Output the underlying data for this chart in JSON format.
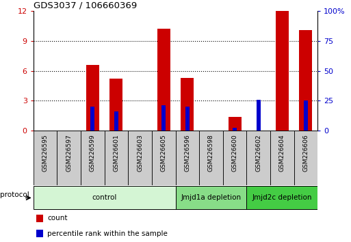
{
  "title": "GDS3037 / 106660369",
  "samples": [
    "GSM226595",
    "GSM226597",
    "GSM226599",
    "GSM226601",
    "GSM226603",
    "GSM226605",
    "GSM226596",
    "GSM226598",
    "GSM226600",
    "GSM226602",
    "GSM226604",
    "GSM226606"
  ],
  "count_values": [
    0,
    0,
    6.6,
    5.2,
    0,
    10.2,
    5.3,
    0,
    1.4,
    0,
    12.0,
    10.1
  ],
  "percentile_values": [
    0,
    0,
    20,
    16,
    0,
    21,
    20,
    0,
    2.5,
    26,
    0,
    25
  ],
  "groups": [
    {
      "label": "control",
      "start": 0,
      "end": 6,
      "color": "#d4f5d4"
    },
    {
      "label": "Jmjd1a depletion",
      "start": 6,
      "end": 9,
      "color": "#88dd88"
    },
    {
      "label": "Jmjd2c depletion",
      "start": 9,
      "end": 12,
      "color": "#44cc44"
    }
  ],
  "left_ylim": [
    0,
    12
  ],
  "right_ylim": [
    0,
    100
  ],
  "left_yticks": [
    0,
    3,
    6,
    9,
    12
  ],
  "right_yticks": [
    0,
    25,
    50,
    75,
    100
  ],
  "right_yticklabels": [
    "0",
    "25",
    "50",
    "75",
    "100%"
  ],
  "count_color": "#cc0000",
  "percentile_color": "#0000cc",
  "bar_width": 0.55,
  "percentile_bar_width": 0.18,
  "protocol_label": "protocol",
  "legend_count": "count",
  "legend_percentile": "percentile rank within the sample",
  "background_color": "#ffffff",
  "left_tick_color": "#cc0000",
  "right_tick_color": "#0000cc",
  "tick_label_area_color": "#cccccc",
  "grid_color": "#000000",
  "grid_linestyle": "dotted",
  "grid_linewidth": 0.8
}
